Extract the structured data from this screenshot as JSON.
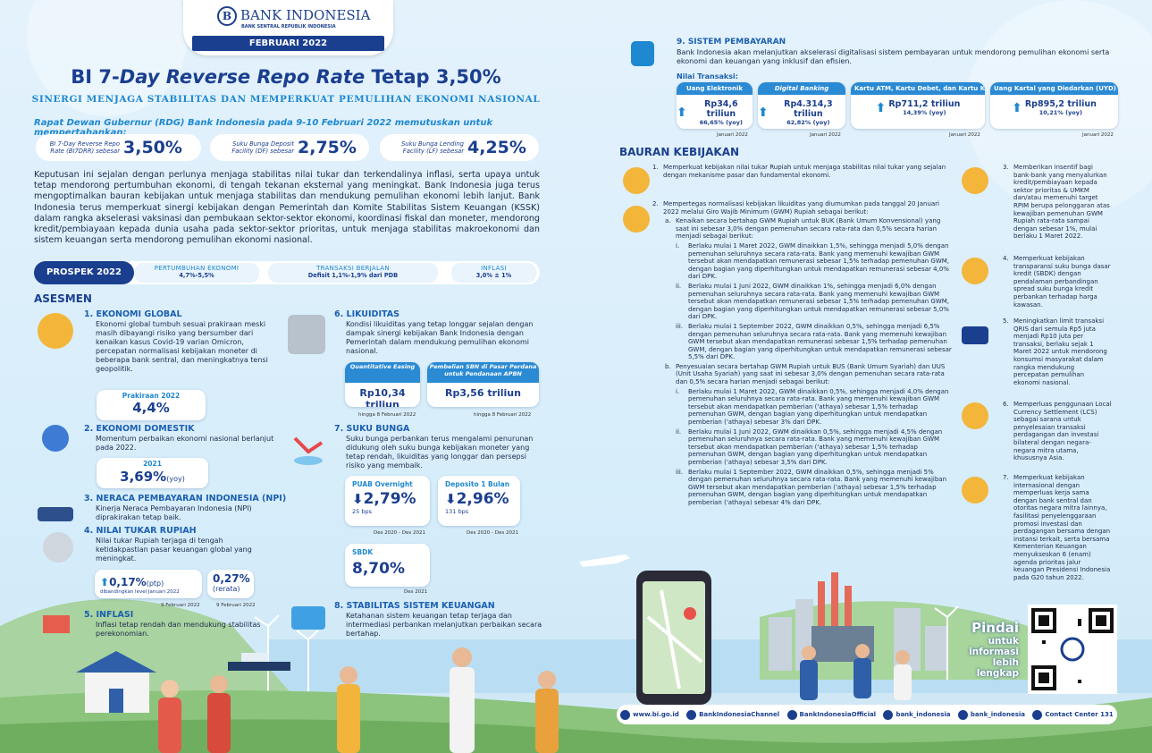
{
  "header": {
    "logo": "BANK INDONESIA",
    "logo_sub": "BANK SENTRAL REPUBLIK INDONESIA",
    "date": "FEBRUARI 2022"
  },
  "headline": {
    "title_prefix": "BI 7-",
    "title_italic": "Day Reverse Repo Rate",
    "title_suffix": "Tetap 3,50%",
    "subtitle": "SINERGI MENJAGA STABILITAS DAN MEMPERKUAT PEMULIHAN EKONOMI NASIONAL",
    "decision": "Rapat Dewan Gubernur (RDG) Bank Indonesia pada 9-10 Februari 2022 memutuskan untuk mempertahankan:"
  },
  "rates": [
    {
      "label": "BI 7-Day Reverse Repo Rate (BI7DRR) sebesar",
      "value": "3,50%"
    },
    {
      "label": "Suku Bunga Deposit Facility (DF) sebesar",
      "value": "2,75%"
    },
    {
      "label": "Suku Bunga Lending Facility (LF) sebesar",
      "value": "4,25%"
    }
  ],
  "intro": "Keputusan ini sejalan dengan perlunya menjaga stabilitas nilai tukar dan terkendalinya inflasi, serta upaya untuk tetap mendorong pertumbuhan ekonomi, di tengah tekanan eksternal yang meningkat. Bank Indonesia juga terus mengoptimalkan bauran kebijakan untuk menjaga stabilitas dan mendukung pemulihan ekonomi lebih lanjut. Bank Indonesia terus memperkuat sinergi kebijakan dengan Pemerintah dan Komite Stabilitas Sistem Keuangan (KSSK) dalam rangka akselerasi vaksinasi dan pembukaan sektor-sektor ekonomi, koordinasi fiskal dan moneter, mendorong kredit/pembiayaan kepada dunia usaha pada sektor-sektor prioritas, untuk menjaga stabilitas makroekonomi dan sistem keuangan serta mendorong pemulihan ekonomi nasional.",
  "prospek": {
    "title": "PROSPEK 2022",
    "items": [
      {
        "label": "PERTUMBUHAN EKONOMI",
        "value": "4,7%-5,5%"
      },
      {
        "label": "TRANSAKSI BERJALAN",
        "value": "Defisit 1,1%-1,9% dari PDB"
      },
      {
        "label": "INFLASI",
        "value": "3,0% ± 1%"
      }
    ]
  },
  "asesmen": {
    "title": "ASESMEN",
    "items": [
      {
        "title": "1. EKONOMI GLOBAL",
        "text": "Ekonomi global tumbuh sesuai prakiraan meski masih dibayangi risiko yang bersumber dari kenaikan kasus Covid-19 varian Omicron, percepatan normalisasi kebijakan moneter di beberapa bank sentral, dan meningkatnya tensi geopolitik.",
        "stats": [
          {
            "label": "Prakiraan 2022",
            "value": "4,4%"
          }
        ]
      },
      {
        "title": "2. EKONOMI DOMESTIK",
        "text": "Momentum perbaikan ekonomi nasional berlanjut pada 2022.",
        "stats": [
          {
            "label": "2021",
            "value": "3,69%",
            "unit": "(yoy)"
          }
        ]
      },
      {
        "title": "3. NERACA PEMBAYARAN INDONESIA (NPI)",
        "text": "Kinerja Neraca Pembayaran Indonesia (NPI) diprakirakan tetap baik."
      },
      {
        "title": "4. NILAI TUKAR RUPIAH",
        "text": "Nilai tukar Rupiah terjaga di tengah ketidakpastian pasar keuangan global yang meningkat.",
        "stats": [
          {
            "value": "0,17%",
            "unit": "(ptp)",
            "label": "dibandingkan level Januari 2022",
            "note": "9 Februari 2022"
          },
          {
            "value": "0,27%",
            "unit": "(rerata)",
            "note": "9 Februari 2022"
          }
        ]
      },
      {
        "title": "5. INFLASI",
        "text": "Inflasi tetap rendah dan mendukung stabilitas perekonomian."
      },
      {
        "title": "6. LIKUIDITAS",
        "text": "Kondisi likuiditas yang tetap longgar sejalan dengan dampak sinergi kebijakan Bank Indonesia dengan Pemerintah dalam mendukung pemulihan ekonomi nasional.",
        "stats": [
          {
            "label": "Quantitative Easing",
            "value": "Rp10,34 triliun",
            "note": "hingga 8 Februari 2022"
          },
          {
            "label": "Pembelian SBN di Pasar Perdana untuk Pendanaan APBN",
            "value": "Rp3,56 triliun",
            "note": "hingga 8 Februari 2022"
          }
        ]
      },
      {
        "title": "7. SUKU BUNGA",
        "text": "Suku bunga perbankan terus mengalami penurunan didukung oleh suku bunga kebijakan moneter yang tetap rendah, likuiditas yang longgar dan persepsi risiko yang membaik.",
        "stats": [
          {
            "label": "PUAB Overnight",
            "value": "2,79%",
            "change": "25 bps",
            "note": "Des 2020 - Des 2021"
          },
          {
            "label": "Deposito 1 Bulan",
            "value": "2,96%",
            "change": "131 bps",
            "note": "Des 2020 - Des 2021"
          },
          {
            "label": "SBDK",
            "value": "8,70%",
            "note": "Des 2021"
          }
        ]
      },
      {
        "title": "8. STABILITAS SISTEM KEUANGAN",
        "text": "Ketahanan sistem keuangan tetap terjaga dan intermediasi perbankan melanjutkan perbaikan secara bertahap."
      }
    ]
  },
  "payment": {
    "title": "9. SISTEM PEMBAYARAN",
    "text": "Bank Indonesia akan melanjutkan akselerasi digitalisasi sistem pembayaran untuk mendorong pemulihan ekonomi serta ekonomi dan keuangan yang inklusif dan efisien.",
    "subtitle": "Nilai Transaksi:",
    "items": [
      {
        "label": "Uang Elektronik",
        "value": "Rp34,6 triliun",
        "growth": "66,65% (yoy)",
        "note": "Januari 2022"
      },
      {
        "label": "Digital Banking",
        "value": "Rp4.314,3 triliun",
        "growth": "62,82% (yoy)",
        "note": "Januari 2022"
      },
      {
        "label": "Kartu ATM, Kartu Debet, dan Kartu Kredit",
        "value": "Rp711,2 triliun",
        "growth": "14,39% (yoy)",
        "note": "Januari 2022"
      },
      {
        "label": "Uang Kartal yang Diedarkan (UYD)",
        "value": "Rp895,2 triliun",
        "growth": "10,21% (yoy)",
        "note": "Januari 2022"
      }
    ]
  },
  "bauran": {
    "title": "BAURAN KEBIJAKAN",
    "items": [
      {
        "num": "1.",
        "text": "Memperkuat kebijakan nilai tukar Rupiah untuk menjaga stabilitas nilai tukar yang sejalan dengan mekanisme pasar dan fundamental ekonomi."
      },
      {
        "num": "2.",
        "text": "Mempertegas normalisasi kebijakan likuiditas yang diumumkan pada tanggal 20 Januari 2022 melalui Giro Wajib Minimum (GWM) Rupiah sebagai berikut:",
        "subs": [
          {
            "num": "a.",
            "text": "Kenaikan secara bertahap GWM Rupiah untuk BUK (Bank Umum Konvensional) yang saat ini sebesar 3,0% dengan pemenuhan secara rata-rata dan 0,5% secara harian menjadi sebagai berikut:",
            "points": [
              {
                "num": "i.",
                "text": "Berlaku mulai 1 Maret 2022, GWM dinaikkan 1,5%, sehingga menjadi 5,0% dengan pemenuhan seluruhnya secara rata-rata. Bank yang memenuhi kewajiban GWM tersebut akan mendapatkan remunerasi sebesar 1,5% terhadap pemenuhan GWM, dengan bagian yang diperhitungkan untuk mendapatkan remunerasi sebesar 4,0% dari DPK."
              },
              {
                "num": "ii.",
                "text": "Berlaku mulai 1 Juni 2022, GWM dinaikkan 1%, sehingga menjadi 6,0% dengan pemenuhan seluruhnya secara rata-rata. Bank yang memenuhi kewajiban GWM tersebut akan mendapatkan remunerasi sebesar 1,5% terhadap pemenuhan GWM, dengan bagian yang diperhitungkan untuk mendapatkan remunerasi sebesar 5,0% dari DPK."
              },
              {
                "num": "iii.",
                "text": "Berlaku mulai 1 September 2022, GWM dinaikkan 0,5%, sehingga menjadi 6,5% dengan pemenuhan seluruhnya secara rata-rata. Bank yang memenuhi kewajiban GWM tersebut akan mendapatkan remunerasi sebesar 1,5% terhadap pemenuhan GWM, dengan bagian yang diperhitungkan untuk mendapatkan remunerasi sebesar 5,5% dari DPK."
              }
            ]
          },
          {
            "num": "b.",
            "text": "Penyesuaian secara bertahap GWM Rupiah untuk BUS (Bank Umum Syariah) dan UUS (Unit Usaha Syariah) yang saat ini sebesar 3,0% dengan pemenuhan secara rata-rata dan 0,5% secara harian menjadi sebagai berikut:",
            "points": [
              {
                "num": "i.",
                "text": "Berlaku mulai 1 Maret 2022, GWM dinaikkan 0,5%, sehingga menjadi 4,0% dengan pemenuhan seluruhnya secara rata-rata. Bank yang memenuhi kewajiban GWM tersebut akan mendapatkan pemberian ('athaya) sebesar 1,5% terhadap pemenuhan GWM, dengan bagian yang diperhitungkan untuk mendapatkan pemberian ('athaya) sebesar 3% dari DPK."
              },
              {
                "num": "ii.",
                "text": "Berlaku mulai 1 Juni 2022, GWM dinaikkan 0,5%, sehingga menjadi 4,5% dengan pemenuhan seluruhnya secara rata-rata. Bank yang memenuhi kewajiban GWM tersebut akan mendapatkan pemberian ('athaya) sebesar 1,5% terhadap pemenuhan GWM, dengan bagian yang diperhitungkan untuk mendapatkan pemberian ('athaya) sebesar 3,5% dari DPK."
              },
              {
                "num": "iii.",
                "text": "Berlaku mulai 1 September 2022, GWM dinaikkan 0,5%, sehingga menjadi 5% dengan pemenuhan seluruhnya secara rata-rata. Bank yang memenuhi kewajiban GWM tersebut akan mendapatkan pemberian ('athaya) sebesar 1,5% terhadap pemenuhan GWM, dengan bagian yang diperhitungkan untuk mendapatkan pemberian ('athaya) sebesar 4% dari DPK."
              }
            ]
          }
        ]
      },
      {
        "num": "3.",
        "text": "Memberikan insentif bagi bank-bank yang menyalurkan kredit/pembiayaan kepada sektor prioritas & UMKM dan/atau memenuhi target RPIM berupa pelonggaran atas kewajiban pemenuhan GWM Rupiah rata-rata sampai dengan sebesar 1%, mulai berlaku 1 Maret 2022."
      },
      {
        "num": "4.",
        "text": "Memperkuat kebijakan transparansi suku bunga dasar kredit (SBDK) dengan pendalaman perbandingan spread suku bunga kredit perbankan terhadap harga kawasan."
      },
      {
        "num": "5.",
        "text": "Meningkatkan limit transaksi QRIS dari semula Rp5 juta menjadi Rp10 juta per transaksi, berlaku sejak 1 Maret 2022 untuk mendorong konsumsi masyarakat dalam rangka mendukung percepatan pemulihan ekonomi nasional."
      },
      {
        "num": "6.",
        "text": "Memperluas penggunaan Local Currency Settlement (LCS) sebagai sarana untuk penyelesaian transaksi perdagangan dan investasi bilateral dengan negara-negara mitra utama, khususnya Asia."
      },
      {
        "num": "7.",
        "text": "Memperkuat kebijakan internasional dengan memperluas kerja sama dengan bank sentral dan otoritas negara mitra lainnya, fasilitasi penyelenggaraan promosi investasi dan perdagangan bersama dengan instansi terkait, serta bersama Kementerian Keuangan menyukseskan 6 (enam) agenda prioritas jalur keuangan Presidensi Indonesia pada G20 tahun 2022."
      }
    ]
  },
  "scan": {
    "lines": [
      "Pindai",
      "untuk",
      "informasi",
      "lebih",
      "lengkap"
    ]
  },
  "footer": {
    "links": [
      "www.bi.go.id",
      "BankIndonesiaChannel",
      "BankIndonesiaOfficial",
      "bank_indonesia",
      "bank_indonesia",
      "Contact Center 131"
    ]
  }
}
